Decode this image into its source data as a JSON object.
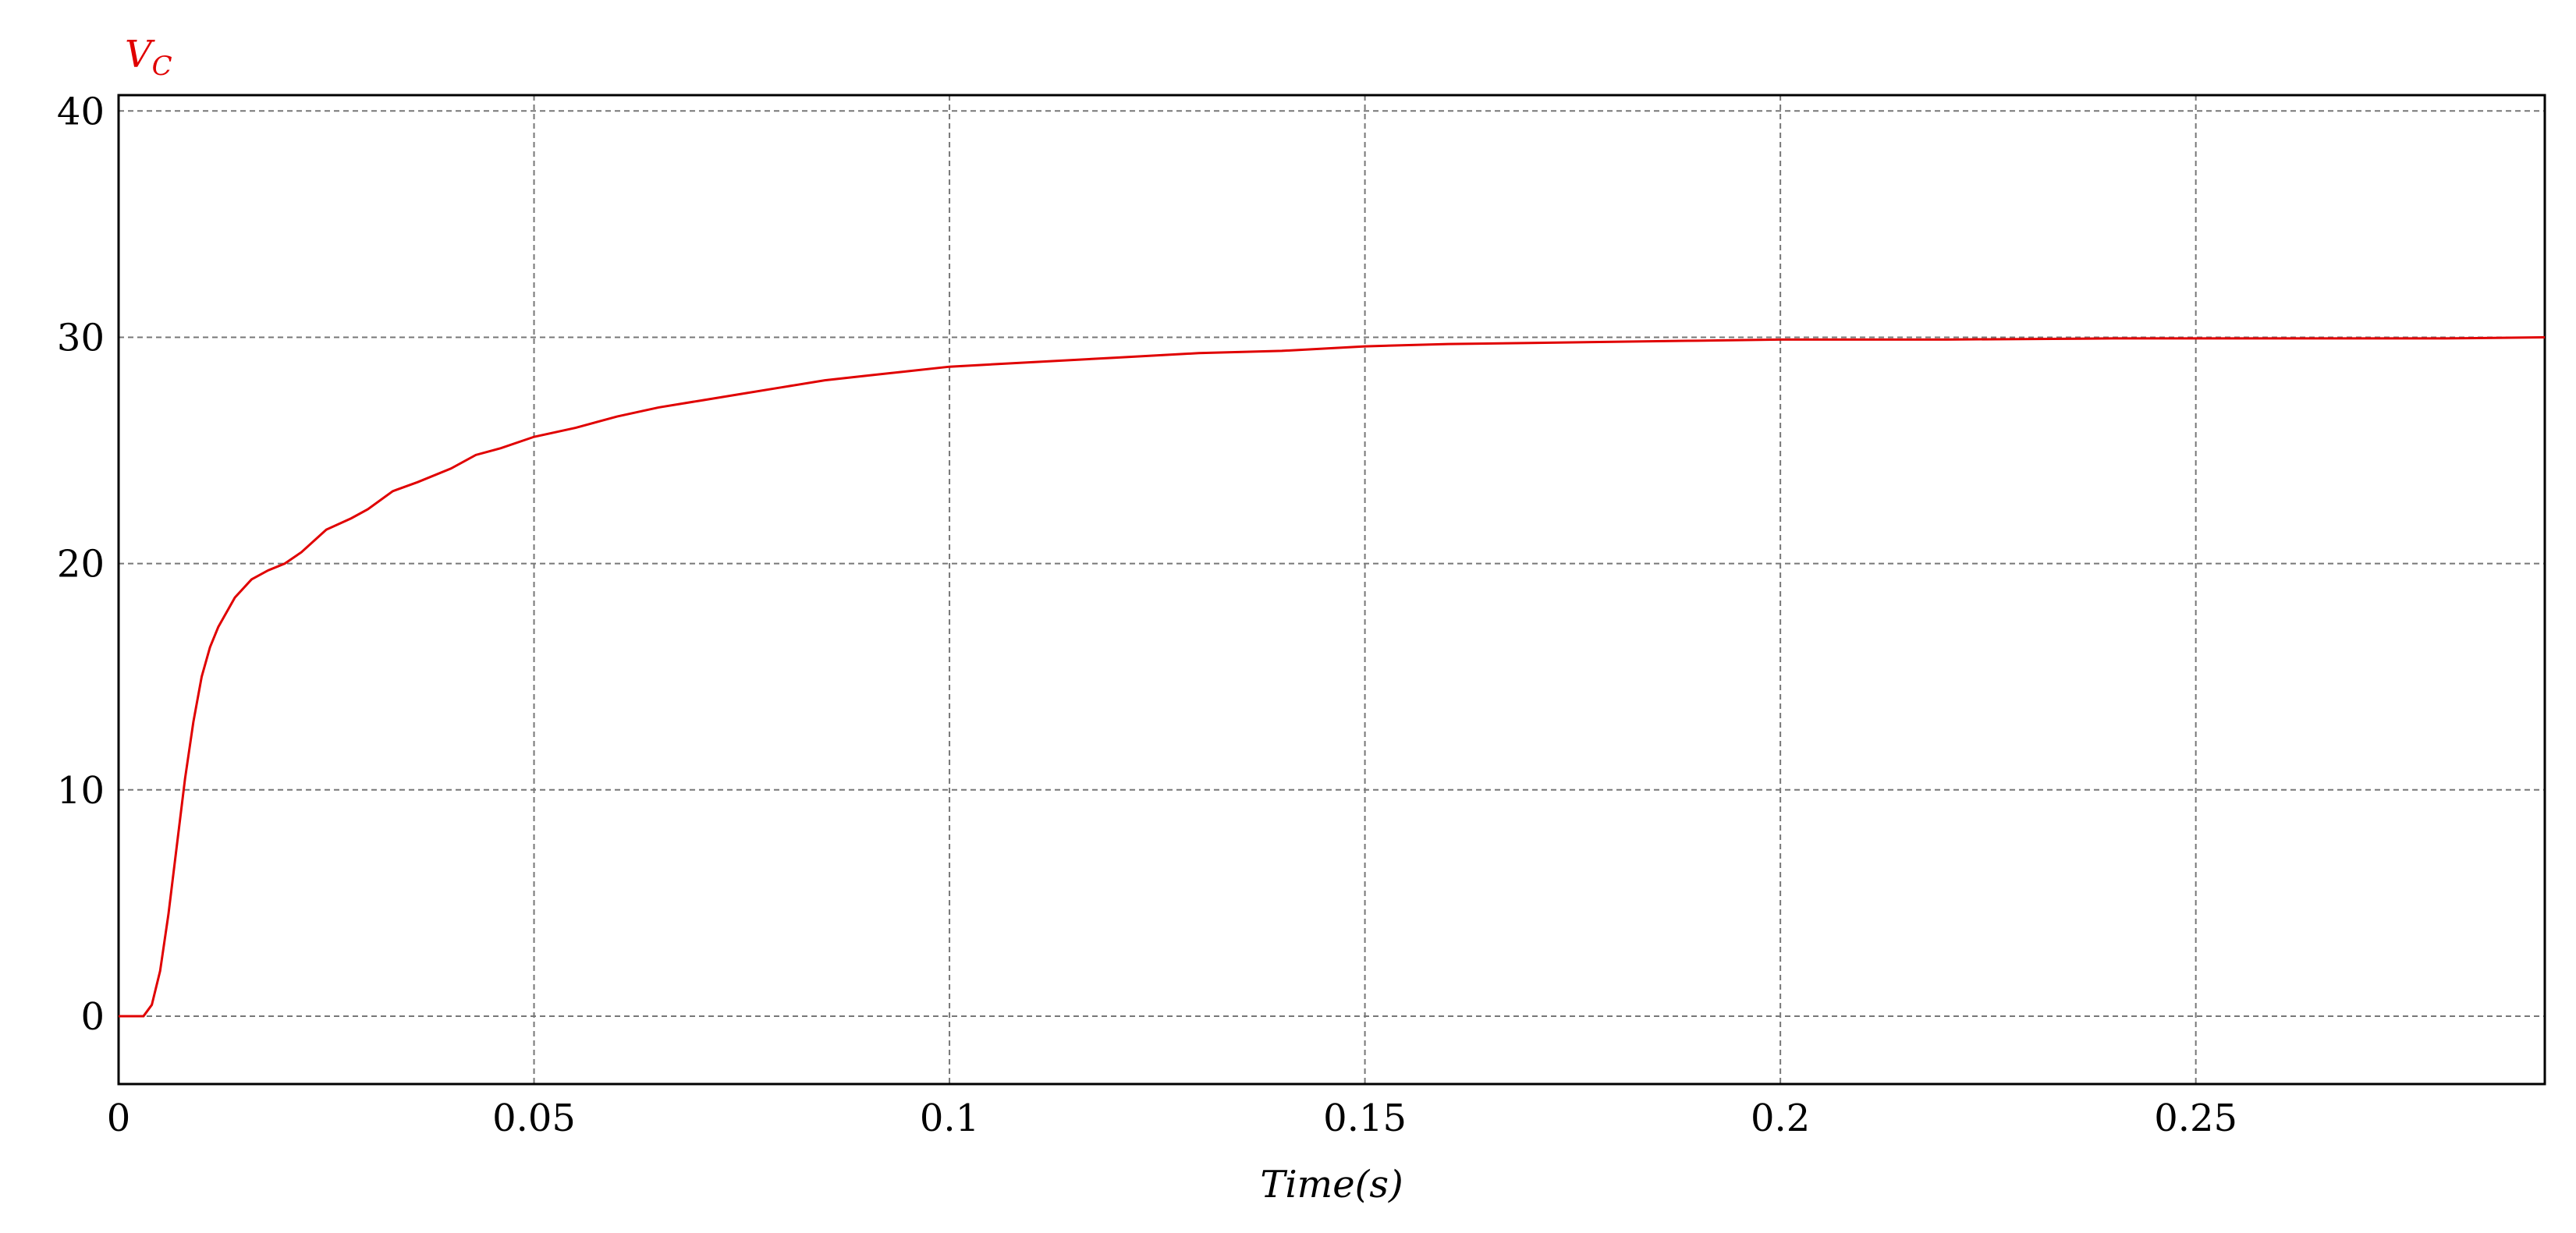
{
  "chart_data": {
    "type": "line",
    "xlabel": "Time(s)",
    "x": [
      0,
      0.003,
      0.004,
      0.005,
      0.006,
      0.007,
      0.008,
      0.009,
      0.01,
      0.011,
      0.012,
      0.014,
      0.016,
      0.018,
      0.02,
      0.022,
      0.025,
      0.028,
      0.03,
      0.033,
      0.036,
      0.04,
      0.043,
      0.046,
      0.05,
      0.055,
      0.06,
      0.065,
      0.07,
      0.075,
      0.08,
      0.085,
      0.09,
      0.095,
      0.1,
      0.11,
      0.12,
      0.13,
      0.14,
      0.15,
      0.16,
      0.17,
      0.18,
      0.19,
      0.2,
      0.22,
      0.24,
      0.26,
      0.28,
      0.292
    ],
    "series": [
      {
        "name": "V_C",
        "color": "#e00000",
        "values": [
          0,
          0,
          0.5,
          2,
          4.5,
          7.5,
          10.5,
          13,
          15,
          16.3,
          17.2,
          18.5,
          19.3,
          19.7,
          20,
          20.5,
          21.5,
          22,
          22.4,
          23.2,
          23.6,
          24.2,
          24.8,
          25.1,
          25.6,
          26,
          26.5,
          26.9,
          27.2,
          27.5,
          27.8,
          28.1,
          28.3,
          28.5,
          28.7,
          28.9,
          29.1,
          29.3,
          29.4,
          29.6,
          29.7,
          29.75,
          29.8,
          29.85,
          29.9,
          29.9,
          29.95,
          29.95,
          29.95,
          30
        ]
      }
    ],
    "xlim": [
      0,
      0.292
    ],
    "ylim": [
      -3,
      40.7
    ],
    "xticks": [
      0,
      0.05,
      0.1,
      0.15,
      0.2,
      0.25
    ],
    "yticks": [
      0,
      10,
      20,
      30,
      40
    ],
    "grid": true
  }
}
